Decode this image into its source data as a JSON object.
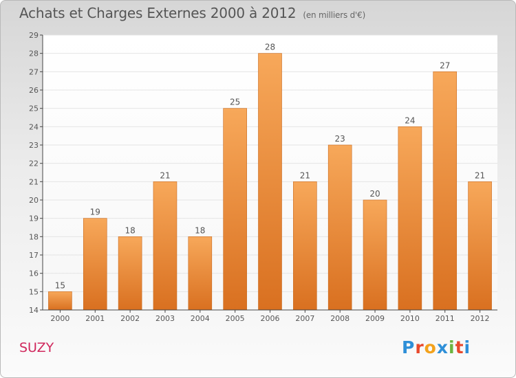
{
  "title": "Achats et Charges Externes 2000 à 2012",
  "subtitle": "(en milliers d'€)",
  "place": "SUZY",
  "logo": {
    "letters": [
      "P",
      "r",
      "o",
      "x",
      "i",
      "t",
      "i"
    ],
    "colors": [
      "#2e8fd8",
      "#e8492c",
      "#f3a21c",
      "#2e8fd8",
      "#6cb33f",
      "#e8492c",
      "#2e8fd8"
    ]
  },
  "colors": {
    "bar_top": "#f7a85a",
    "bar_bottom": "#d97020",
    "label": "#555555",
    "grid": "#e4e4e4",
    "axis": "#444444"
  },
  "chart_data": {
    "type": "bar",
    "categories": [
      "2000",
      "2001",
      "2002",
      "2003",
      "2004",
      "2005",
      "2006",
      "2007",
      "2008",
      "2009",
      "2010",
      "2011",
      "2012"
    ],
    "values": [
      15,
      19,
      18,
      21,
      18,
      25,
      28,
      21,
      23,
      20,
      24,
      27,
      21
    ],
    "ylim": [
      14,
      29
    ],
    "yticks": [
      14,
      15,
      16,
      17,
      18,
      19,
      20,
      21,
      22,
      23,
      24,
      25,
      26,
      27,
      28,
      29
    ],
    "grid": true,
    "data_labels": true
  }
}
